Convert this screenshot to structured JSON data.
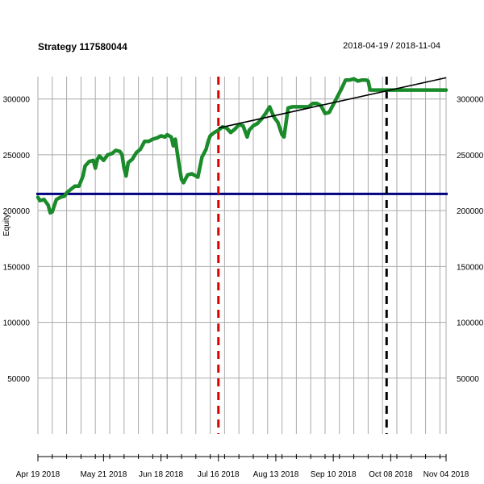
{
  "header": {
    "title": "Strategy 117580044",
    "date_range": "2018-04-19 / 2018-11-04"
  },
  "chart_data": {
    "type": "line",
    "title": "Strategy 117580044",
    "ylabel": "Equity",
    "xlabel": "",
    "x_ticks": [
      "Apr 19 2018",
      "May 21 2018",
      "Jun 18 2018",
      "Jul 16 2018",
      "Aug 13 2018",
      "Sep 10 2018",
      "Oct 08 2018",
      "Nov 04 2018"
    ],
    "x_range": [
      "2018-04-19",
      "2018-11-04"
    ],
    "y_ticks": [
      50000,
      100000,
      150000,
      200000,
      250000,
      300000
    ],
    "y_tick_labels": [
      "50000",
      "100000",
      "150000",
      "200000",
      "250000",
      "300000"
    ],
    "ylim": [
      0,
      320000
    ],
    "grid": true,
    "colors": {
      "equity": "#1a8a2a",
      "baseline": "#000080",
      "trend": "#000000",
      "marker_red": "#dd0000",
      "marker_black": "#000000",
      "grid": "#aaaaaa"
    },
    "baseline_value": 215000,
    "vertical_markers": [
      {
        "date": "2018-07-16",
        "color": "red"
      },
      {
        "date": "2018-10-06",
        "color": "black"
      }
    ],
    "trend_line": [
      {
        "x": "2018-07-16",
        "y": 274000
      },
      {
        "x": "2018-11-04",
        "y": 319000
      }
    ],
    "series": [
      {
        "points": [
          [
            "2018-04-19",
            212000
          ],
          [
            "2018-04-20",
            209000
          ],
          [
            "2018-04-22",
            210000
          ],
          [
            "2018-04-24",
            205000
          ],
          [
            "2018-04-25",
            198000
          ],
          [
            "2018-04-26",
            199000
          ],
          [
            "2018-04-28",
            210000
          ],
          [
            "2018-04-30",
            212000
          ],
          [
            "2018-05-02",
            213000
          ],
          [
            "2018-05-03",
            216000
          ],
          [
            "2018-05-05",
            219000
          ],
          [
            "2018-05-07",
            222000
          ],
          [
            "2018-05-09",
            222000
          ],
          [
            "2018-05-11",
            231000
          ],
          [
            "2018-05-12",
            240000
          ],
          [
            "2018-05-14",
            244000
          ],
          [
            "2018-05-16",
            245000
          ],
          [
            "2018-05-17",
            238000
          ],
          [
            "2018-05-18",
            246000
          ],
          [
            "2018-05-19",
            249000
          ],
          [
            "2018-05-21",
            245000
          ],
          [
            "2018-05-23",
            250000
          ],
          [
            "2018-05-25",
            251000
          ],
          [
            "2018-05-27",
            254000
          ],
          [
            "2018-05-29",
            253000
          ],
          [
            "2018-05-30",
            250000
          ],
          [
            "2018-05-31",
            238000
          ],
          [
            "2018-06-01",
            231000
          ],
          [
            "2018-06-02",
            243000
          ],
          [
            "2018-06-04",
            246000
          ],
          [
            "2018-06-06",
            252000
          ],
          [
            "2018-06-08",
            255000
          ],
          [
            "2018-06-10",
            262000
          ],
          [
            "2018-06-12",
            262000
          ],
          [
            "2018-06-14",
            264000
          ],
          [
            "2018-06-16",
            265000
          ],
          [
            "2018-06-18",
            267000
          ],
          [
            "2018-06-20",
            266000
          ],
          [
            "2018-06-21",
            268000
          ],
          [
            "2018-06-23",
            266000
          ],
          [
            "2018-06-24",
            258000
          ],
          [
            "2018-06-25",
            264000
          ],
          [
            "2018-06-26",
            251000
          ],
          [
            "2018-06-27",
            239000
          ],
          [
            "2018-06-28",
            228000
          ],
          [
            "2018-06-29",
            225000
          ],
          [
            "2018-07-01",
            232000
          ],
          [
            "2018-07-03",
            233000
          ],
          [
            "2018-07-05",
            231000
          ],
          [
            "2018-07-06",
            230000
          ],
          [
            "2018-07-08",
            248000
          ],
          [
            "2018-07-10",
            255000
          ],
          [
            "2018-07-11",
            262000
          ],
          [
            "2018-07-12",
            267000
          ],
          [
            "2018-07-14",
            270000
          ],
          [
            "2018-07-16",
            272000
          ],
          [
            "2018-07-18",
            275000
          ],
          [
            "2018-07-20",
            274000
          ],
          [
            "2018-07-22",
            270000
          ],
          [
            "2018-07-24",
            273000
          ],
          [
            "2018-07-26",
            277000
          ],
          [
            "2018-07-28",
            276000
          ],
          [
            "2018-07-30",
            266000
          ],
          [
            "2018-07-31",
            272000
          ],
          [
            "2018-08-02",
            276000
          ],
          [
            "2018-08-04",
            278000
          ],
          [
            "2018-08-06",
            282000
          ],
          [
            "2018-08-08",
            287000
          ],
          [
            "2018-08-10",
            293000
          ],
          [
            "2018-08-12",
            284000
          ],
          [
            "2018-08-14",
            279000
          ],
          [
            "2018-08-16",
            268000
          ],
          [
            "2018-08-17",
            266000
          ],
          [
            "2018-08-19",
            292000
          ],
          [
            "2018-08-21",
            293000
          ],
          [
            "2018-08-24",
            293000
          ],
          [
            "2018-08-27",
            293000
          ],
          [
            "2018-08-29",
            293000
          ],
          [
            "2018-08-31",
            296000
          ],
          [
            "2018-09-02",
            296000
          ],
          [
            "2018-09-04",
            294000
          ],
          [
            "2018-09-06",
            287000
          ],
          [
            "2018-09-08",
            288000
          ],
          [
            "2018-09-10",
            295000
          ],
          [
            "2018-09-12",
            302000
          ],
          [
            "2018-09-14",
            309000
          ],
          [
            "2018-09-16",
            317000
          ],
          [
            "2018-09-18",
            317000
          ],
          [
            "2018-09-20",
            318000
          ],
          [
            "2018-09-22",
            316000
          ],
          [
            "2018-09-24",
            317000
          ],
          [
            "2018-09-26",
            317000
          ],
          [
            "2018-09-27",
            316000
          ],
          [
            "2018-09-28",
            308000
          ],
          [
            "2018-09-30",
            308000
          ],
          [
            "2018-10-03",
            308000
          ],
          [
            "2018-10-06",
            308000
          ],
          [
            "2018-10-10",
            308000
          ],
          [
            "2018-10-15",
            308000
          ],
          [
            "2018-10-20",
            308000
          ],
          [
            "2018-10-25",
            308000
          ],
          [
            "2018-10-30",
            308000
          ],
          [
            "2018-11-04",
            308000
          ]
        ]
      }
    ]
  }
}
